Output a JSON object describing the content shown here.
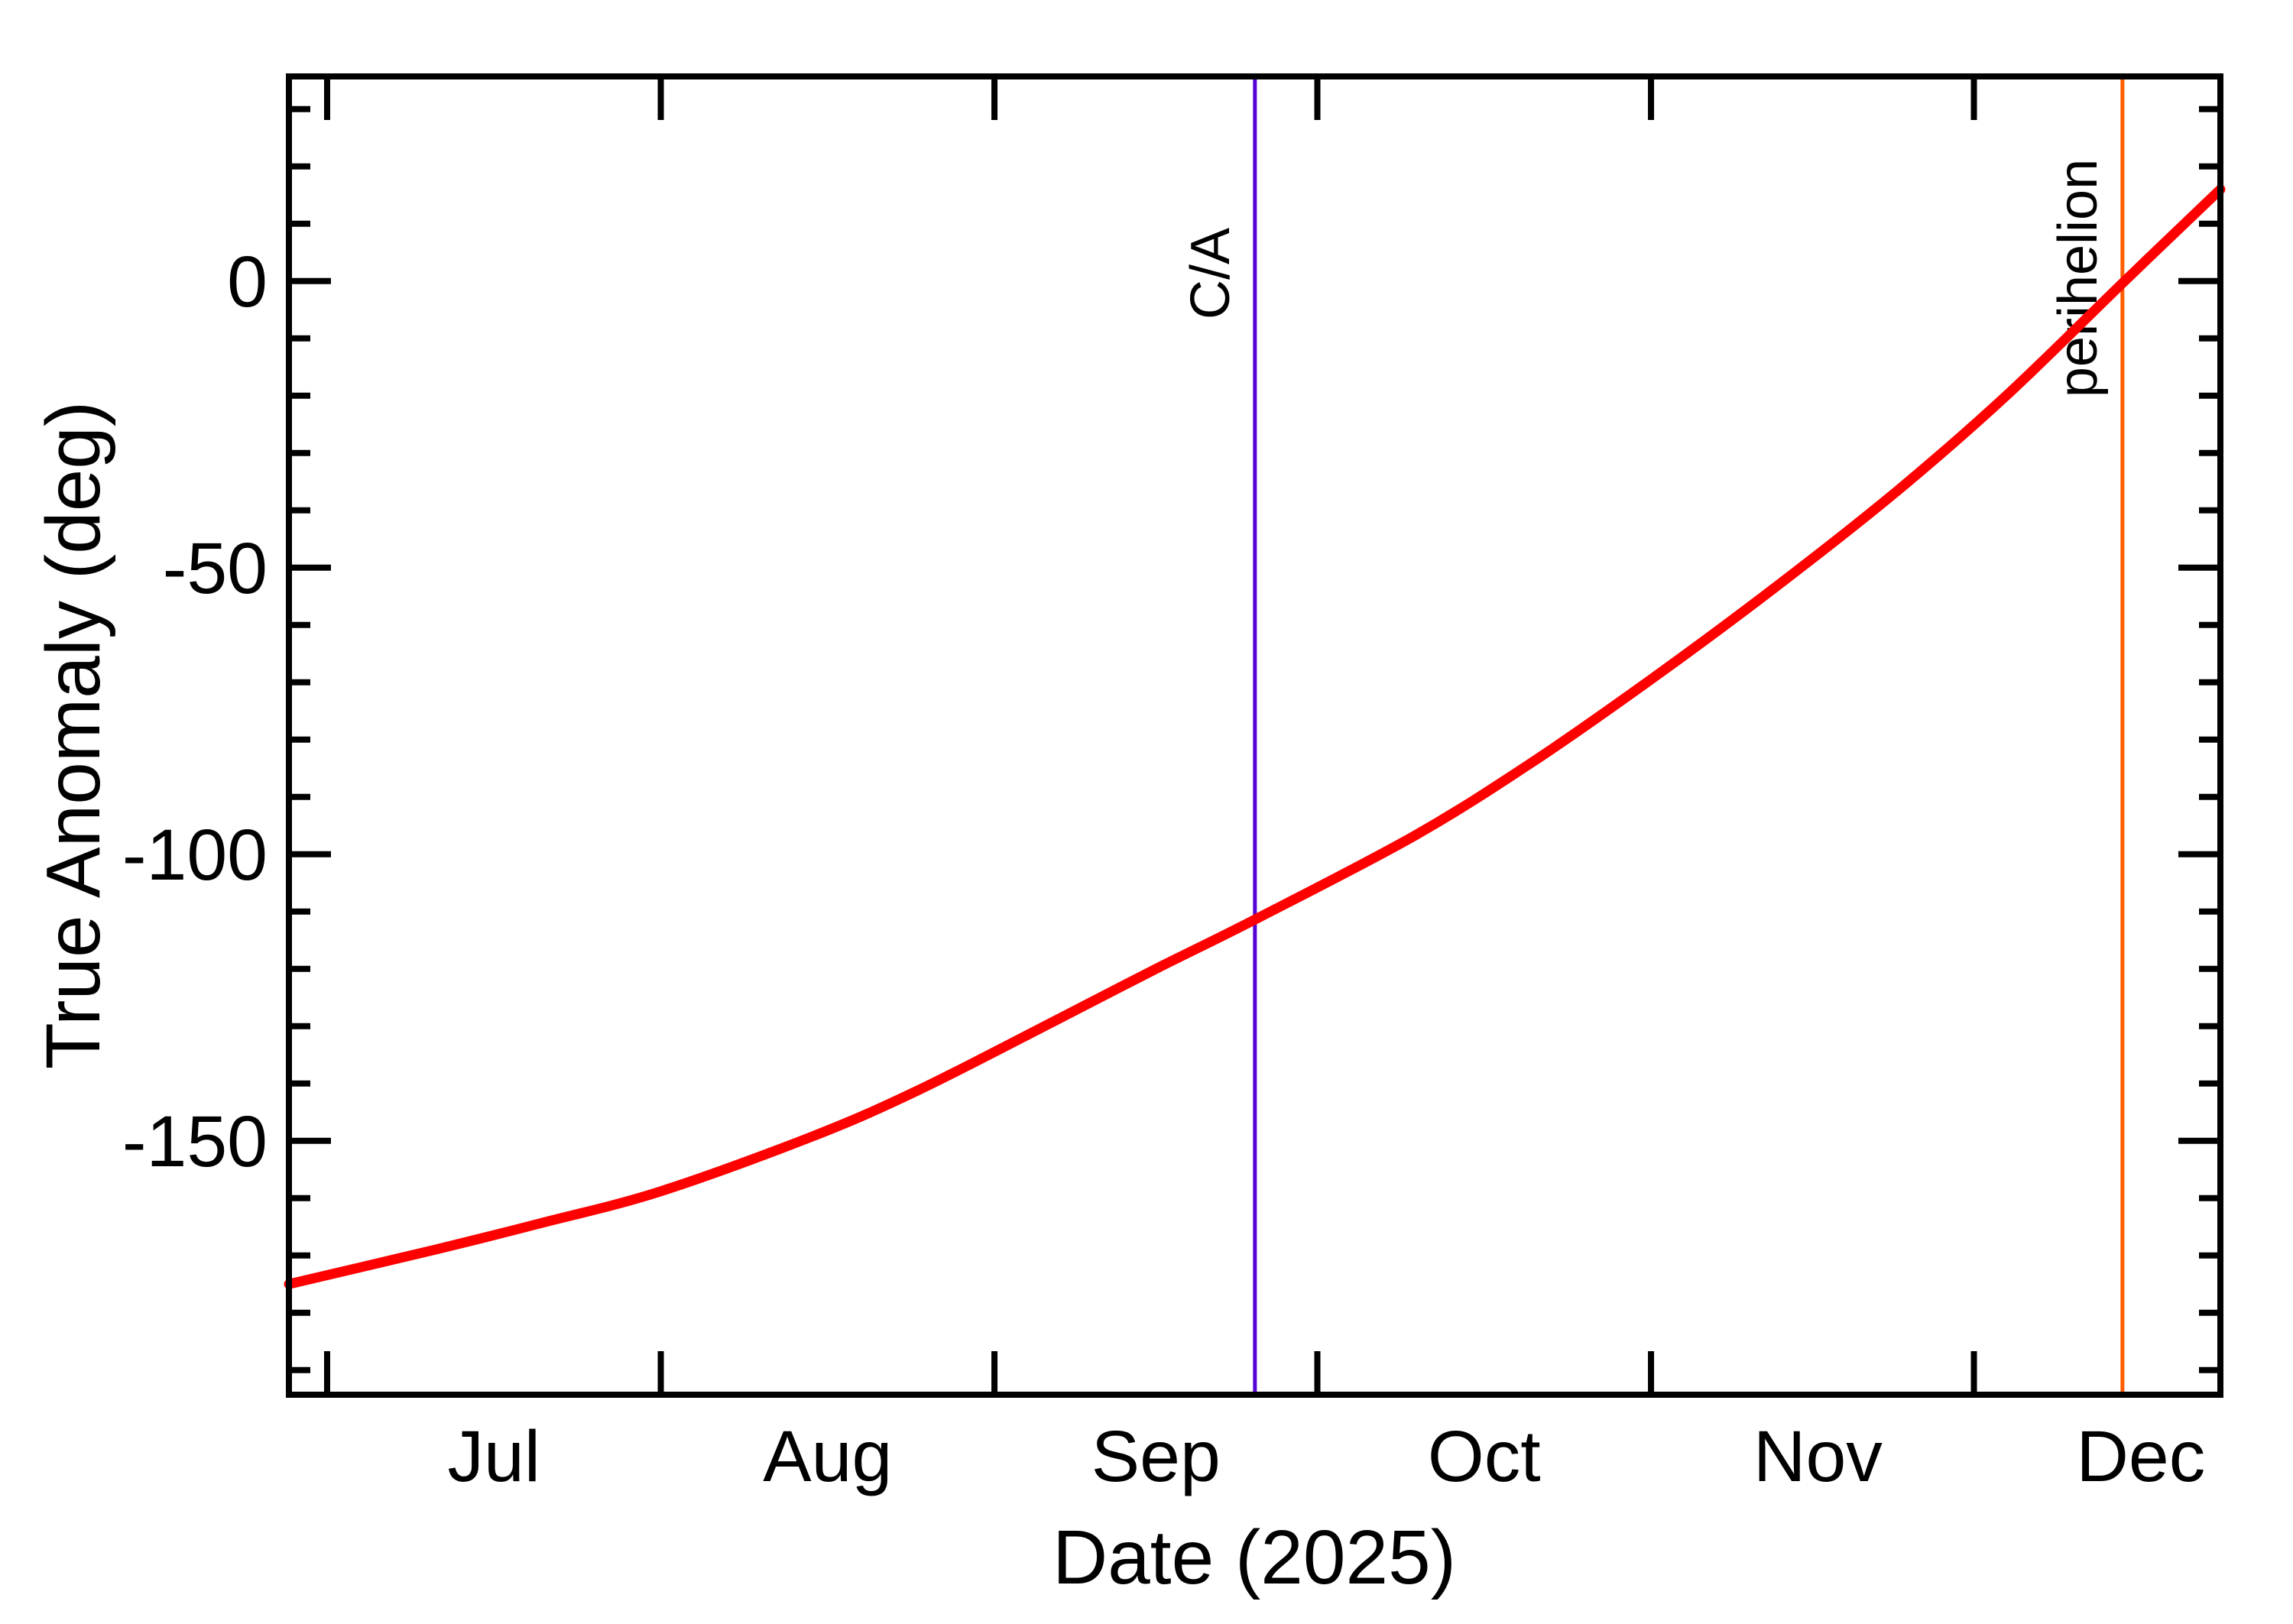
{
  "figure": {
    "background": "#ffffff",
    "frame_color": "#000000"
  },
  "chart_data": {
    "type": "line",
    "title": "",
    "xlabel": "Date (2025)",
    "ylabel": "True Anomaly (deg)",
    "x_tick_labels": [
      "Jul",
      "Aug",
      "Sep",
      "Oct",
      "Nov",
      "Dec"
    ],
    "x_month_start_days": [
      0,
      31,
      62,
      92,
      123,
      153
    ],
    "x_month_label_days": [
      15.5,
      46.5,
      77,
      107.5,
      138.5,
      168.5
    ],
    "xlim_days_since_jul1": [
      -3.55,
      175.9
    ],
    "y_tick_labels": [
      "0",
      "-50",
      "-100",
      "-150"
    ],
    "y_ticks": [
      0,
      -50,
      -100,
      -150
    ],
    "y_minor_step": 10,
    "ylim_deg": [
      -194.3,
      35.7
    ],
    "grid": false,
    "legend": "none",
    "series": [
      {
        "name": "true-anomaly",
        "color": "#ff0000",
        "x_days_since_jul1": [
          -3.55,
          10,
          20,
          31,
          45,
          55,
          68.3,
          77,
          86.3,
          101,
          112,
          123,
          134,
          145.5,
          156,
          167,
          175.9
        ],
        "y_deg": [
          -175.0,
          -169.0,
          -164.3,
          -158.8,
          -149.3,
          -141.1,
          -128.4,
          -120.0,
          -111.3,
          -96.8,
          -83.9,
          -69.5,
          -54.2,
          -37.2,
          -20.0,
          0.0,
          16.0
        ]
      }
    ],
    "markers": [
      {
        "id": "ca",
        "label": "C/A",
        "x_days_since_jul1": 86.2,
        "color": "#5504d4",
        "value_at_crossing_deg": -111.3
      },
      {
        "id": "perihelion",
        "label": "perihelion",
        "x_days_since_jul1": 166.8,
        "color": "#ff5c00",
        "value_at_crossing_deg": 0
      }
    ]
  }
}
